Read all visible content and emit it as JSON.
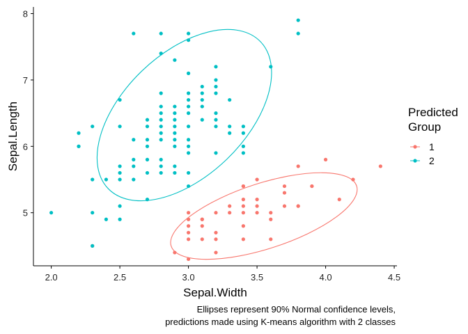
{
  "chart_data": {
    "type": "scatter",
    "xlabel": "Sepal.Width",
    "ylabel": "Sepal.Length",
    "xlim": [
      1.87,
      4.52
    ],
    "ylim": [
      4.2,
      8.1
    ],
    "xticks": [
      "2.0",
      "2.5",
      "3.0",
      "3.5",
      "4.0",
      "4.5"
    ],
    "yticks": [
      "5",
      "6",
      "7",
      "8"
    ],
    "grid": false,
    "legend": {
      "title_lines": [
        "Predicted",
        "Group"
      ],
      "placement": "right"
    },
    "caption_lines": [
      "Ellipses represent 90% Normal confidence levels,",
      "predictions made using K-means algorithm with 2 classes"
    ],
    "series": [
      {
        "name": "1",
        "color": "#F8766D",
        "points": [
          [
            2.3,
            4.5
          ],
          [
            2.9,
            4.4
          ],
          [
            3.0,
            4.3
          ],
          [
            3.2,
            4.4
          ],
          [
            3.0,
            4.6
          ],
          [
            3.1,
            4.6
          ],
          [
            3.2,
            4.6
          ],
          [
            3.4,
            4.6
          ],
          [
            3.6,
            4.6
          ],
          [
            3.0,
            4.7
          ],
          [
            3.2,
            4.7
          ],
          [
            3.0,
            4.8
          ],
          [
            3.1,
            4.8
          ],
          [
            3.4,
            4.8
          ],
          [
            3.0,
            4.9
          ],
          [
            3.1,
            4.9
          ],
          [
            3.1,
            4.9
          ],
          [
            3.6,
            4.9
          ],
          [
            3.0,
            5.0
          ],
          [
            3.2,
            5.0
          ],
          [
            3.3,
            5.0
          ],
          [
            3.4,
            5.0
          ],
          [
            3.5,
            5.0
          ],
          [
            3.6,
            5.0
          ],
          [
            3.4,
            5.1
          ],
          [
            3.5,
            5.1
          ],
          [
            3.8,
            5.1
          ],
          [
            3.3,
            5.1
          ],
          [
            3.7,
            5.1
          ],
          [
            3.8,
            5.1
          ],
          [
            3.4,
            5.2
          ],
          [
            3.5,
            5.2
          ],
          [
            4.1,
            5.2
          ],
          [
            3.7,
            5.3
          ],
          [
            3.4,
            5.4
          ],
          [
            3.7,
            5.4
          ],
          [
            3.9,
            5.4
          ],
          [
            3.5,
            5.5
          ],
          [
            4.2,
            5.5
          ],
          [
            3.8,
            5.7
          ],
          [
            4.4,
            5.7
          ],
          [
            4.0,
            5.8
          ],
          [
            3.4,
            5.4
          ],
          [
            3.9,
            5.4
          ]
        ]
      },
      {
        "name": "2",
        "color": "#00BFC4",
        "points": [
          [
            2.0,
            5.0
          ],
          [
            2.3,
            5.0
          ],
          [
            2.4,
            4.9
          ],
          [
            2.5,
            4.9
          ],
          [
            2.3,
            4.5
          ],
          [
            2.2,
            6.0
          ],
          [
            2.2,
            6.2
          ],
          [
            2.3,
            5.5
          ],
          [
            2.3,
            6.3
          ],
          [
            2.4,
            5.5
          ],
          [
            2.5,
            5.1
          ],
          [
            2.5,
            5.5
          ],
          [
            2.5,
            5.6
          ],
          [
            2.5,
            5.7
          ],
          [
            2.5,
            6.3
          ],
          [
            2.5,
            6.7
          ],
          [
            2.6,
            5.5
          ],
          [
            2.6,
            5.7
          ],
          [
            2.6,
            5.8
          ],
          [
            2.6,
            6.1
          ],
          [
            2.6,
            7.7
          ],
          [
            2.7,
            5.2
          ],
          [
            2.7,
            5.6
          ],
          [
            2.7,
            5.8
          ],
          [
            2.7,
            6.0
          ],
          [
            2.7,
            6.3
          ],
          [
            2.7,
            6.4
          ],
          [
            2.8,
            5.6
          ],
          [
            2.8,
            5.7
          ],
          [
            2.8,
            5.8
          ],
          [
            2.8,
            6.1
          ],
          [
            2.8,
            6.2
          ],
          [
            2.8,
            6.3
          ],
          [
            2.8,
            6.4
          ],
          [
            2.8,
            6.5
          ],
          [
            2.8,
            6.8
          ],
          [
            2.8,
            7.4
          ],
          [
            2.8,
            7.7
          ],
          [
            2.9,
            5.6
          ],
          [
            2.9,
            5.7
          ],
          [
            2.9,
            6.0
          ],
          [
            2.9,
            6.1
          ],
          [
            2.9,
            6.2
          ],
          [
            2.9,
            6.3
          ],
          [
            2.9,
            6.4
          ],
          [
            2.9,
            6.6
          ],
          [
            2.9,
            7.3
          ],
          [
            3.0,
            5.4
          ],
          [
            3.0,
            5.6
          ],
          [
            3.0,
            5.9
          ],
          [
            3.0,
            6.0
          ],
          [
            3.0,
            6.1
          ],
          [
            3.0,
            6.5
          ],
          [
            3.0,
            6.7
          ],
          [
            3.0,
            6.8
          ],
          [
            3.0,
            7.1
          ],
          [
            3.0,
            7.6
          ],
          [
            3.0,
            7.7
          ],
          [
            3.1,
            6.4
          ],
          [
            3.1,
            6.7
          ],
          [
            3.1,
            6.9
          ],
          [
            3.2,
            5.9
          ],
          [
            3.2,
            6.4
          ],
          [
            3.2,
            6.5
          ],
          [
            3.2,
            6.8
          ],
          [
            3.2,
            6.9
          ],
          [
            3.2,
            7.0
          ],
          [
            3.2,
            7.2
          ],
          [
            3.3,
            6.3
          ],
          [
            3.3,
            6.7
          ],
          [
            3.4,
            6.0
          ],
          [
            3.4,
            6.2
          ],
          [
            3.6,
            7.2
          ],
          [
            3.8,
            7.7
          ],
          [
            3.8,
            7.9
          ],
          [
            2.2,
            6.0
          ],
          [
            2.7,
            6.1
          ],
          [
            2.8,
            6.6
          ],
          [
            2.9,
            6.5
          ],
          [
            3.0,
            6.6
          ],
          [
            3.1,
            6.6
          ],
          [
            3.1,
            6.8
          ],
          [
            3.0,
            6.3
          ],
          [
            3.2,
            6.3
          ],
          [
            3.4,
            6.3
          ],
          [
            3.3,
            6.2
          ],
          [
            3.4,
            5.9
          ]
        ],
        "ellipse": {
          "cx": 2.97,
          "cy": 6.47,
          "rx": 0.75,
          "ry": 1.05,
          "angle_deg": 42
        }
      }
    ]
  }
}
